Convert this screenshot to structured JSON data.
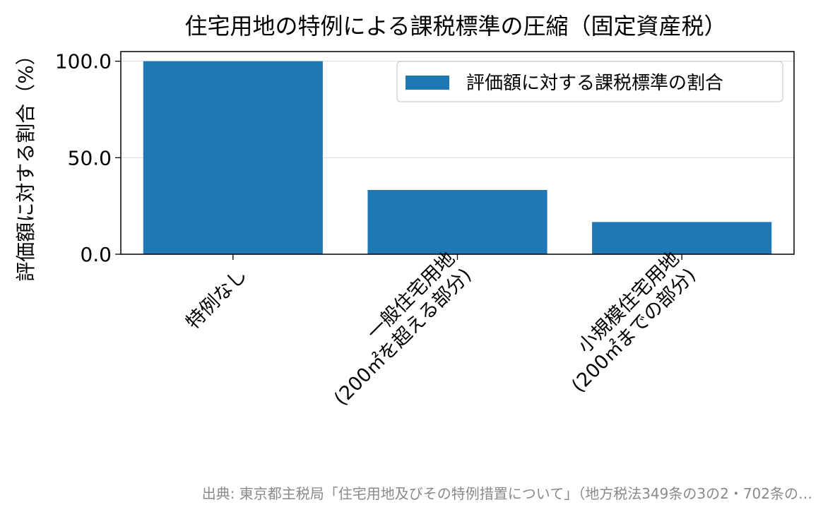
{
  "chart_data": {
    "type": "bar",
    "title": "住宅用地の特例による課税標準の圧縮（固定資産税）",
    "ylabel": "評価額に対する割合（%）",
    "xlabel": "",
    "categories": [
      [
        "特例なし"
      ],
      [
        "一般住宅用地",
        "(200㎡を超える部分)"
      ],
      [
        "小規模住宅用地",
        "(200㎡までの部分)"
      ]
    ],
    "series": [
      {
        "name": "評価額に対する課税標準の割合",
        "values": [
          100.0,
          33.3,
          16.7
        ]
      }
    ],
    "ylim": [
      0,
      105
    ],
    "yticks": [
      0.0,
      50.0,
      100.0
    ],
    "ytick_labels": [
      "0.0",
      "50.0",
      "100.0"
    ],
    "grid": "horizontal",
    "legend_position": "top-right",
    "bar_color": "#1f77b4"
  },
  "source_note": "出典: 東京都主税局「住宅用地及びその特例措置について」（地方税法349条の3の2・702条の…"
}
